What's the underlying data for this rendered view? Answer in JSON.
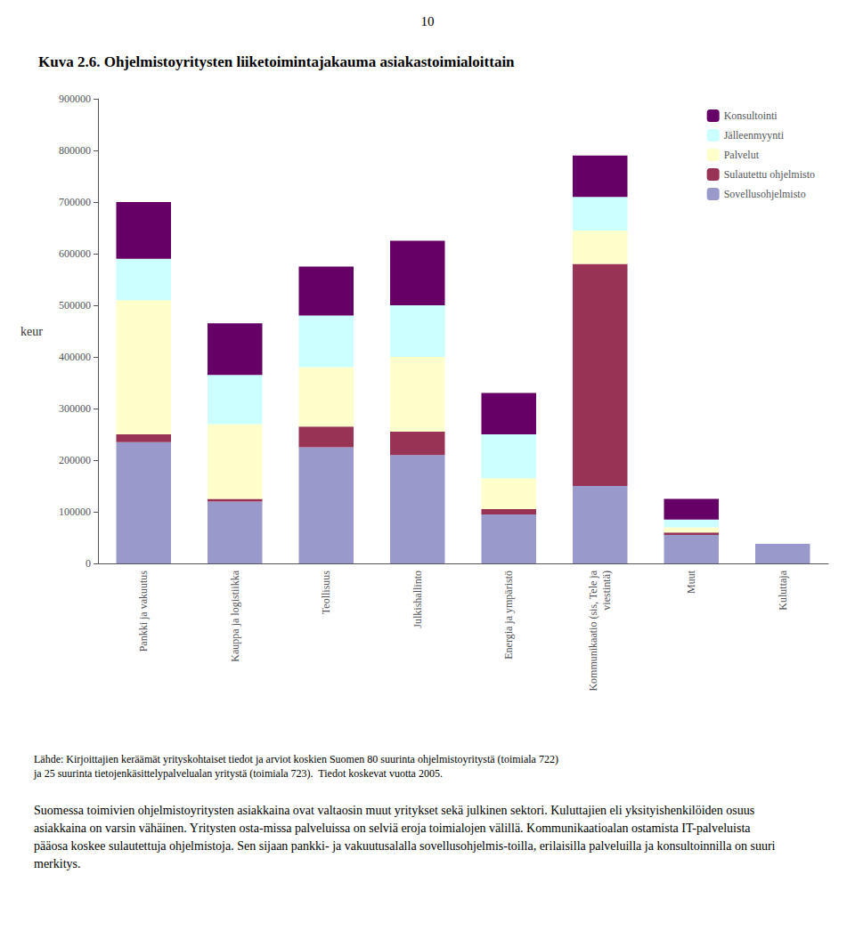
{
  "chart_data": {
    "type": "bar",
    "title": "Kuva 2.6. Ohjelmistoyritysten liiketoimintajakauma asiakastoimialoittain",
    "ylabel": "keur",
    "categories": [
      "Pankki ja vakuutus",
      "Kauppa ja logistiikka",
      "Teollisuus",
      "Julkishallinto",
      "Energia ja ympäristö",
      "Kommunikaatio (sis, Tele ja\nviestintä)",
      "Muut",
      "Kuluttaja"
    ],
    "series": [
      {
        "name": "Sovellusohjelmisto",
        "color": "#9999cc",
        "values": [
          235000,
          120000,
          225000,
          210000,
          95000,
          150000,
          55000,
          38000
        ]
      },
      {
        "name": "Sulautettu ohjelmisto",
        "color": "#993355",
        "values": [
          15000,
          5000,
          40000,
          45000,
          10000,
          430000,
          5000,
          0
        ]
      },
      {
        "name": "Palvelut",
        "color": "#ffffcc",
        "values": [
          260000,
          145000,
          115000,
          145000,
          60000,
          65000,
          10000,
          0
        ]
      },
      {
        "name": "Jälleenmyynti",
        "color": "#ccffff",
        "values": [
          80000,
          95000,
          100000,
          100000,
          85000,
          65000,
          15000,
          0
        ]
      },
      {
        "name": "Konsultointi",
        "color": "#660066",
        "values": [
          110000,
          100000,
          95000,
          125000,
          80000,
          80000,
          40000,
          0
        ]
      }
    ],
    "stacked": true,
    "ylim": [
      0,
      900000
    ],
    "yticks": [
      0,
      100000,
      200000,
      300000,
      400000,
      500000,
      600000,
      700000,
      800000,
      900000
    ],
    "grid": false,
    "legend": "upper right",
    "annotations": [
      "10",
      "Lähde: Kirjoittajien keräämät yrityskohtaiset tiedot ja arviot koskien Suomen 80 suurinta ohjelmistoyritystä (toimiala 722)\nja 25 suurinta tietojenkäsittelypalvelualan yritystä (toimiala 723).  Tiedot koskevat vuotta 2005.",
      "Suomessa toimivien ohjelmistoyritysten asiakkaina ovat valtaosin muut yritykset sekä julkinen sektori. Kuluttajien eli yksityishenkilöiden osuus asiakkaina on varsin vähäinen. Yritysten osta-missa palveluissa on selviä eroja toimialojen välillä. Kommunikaatioalan ostamista IT-palveluista pääosa koskee sulautettuja ohjelmistoja. Sen sijaan pankki- ja vakuutusalalla sovellusohjelmis-toilla, erilaisilla palveluilla ja konsultoinnilla on suuri merkitys."
    ]
  }
}
